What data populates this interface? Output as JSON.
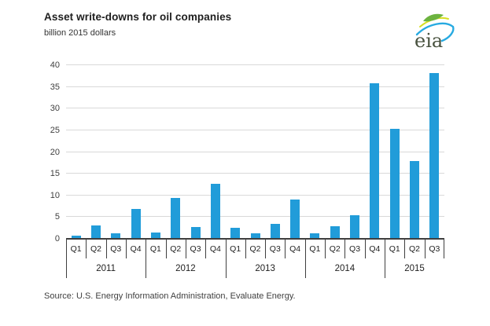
{
  "header": {
    "title": "Asset write-downs for oil companies",
    "subtitle": "billion 2015 dollars"
  },
  "logo": {
    "text": "eia"
  },
  "footer": {
    "source": "Source:  U.S. Energy Information Administration, Evaluate Energy."
  },
  "chart_data": {
    "type": "bar",
    "title": "Asset write-downs for oil companies",
    "ylabel": "billion 2015 dollars",
    "xlabel": "",
    "ylim": [
      0,
      40
    ],
    "ytick_step": 5,
    "grid": true,
    "legend": "none",
    "categories": [
      "Q1",
      "Q2",
      "Q3",
      "Q4",
      "Q1",
      "Q2",
      "Q3",
      "Q4",
      "Q1",
      "Q2",
      "Q3",
      "Q4",
      "Q1",
      "Q2",
      "Q3",
      "Q4",
      "Q1",
      "Q2",
      "Q3"
    ],
    "year_groups": [
      {
        "label": "2011",
        "quarters": 4
      },
      {
        "label": "2012",
        "quarters": 4
      },
      {
        "label": "2013",
        "quarters": 4
      },
      {
        "label": "2014",
        "quarters": 4
      },
      {
        "label": "2015",
        "quarters": 3
      }
    ],
    "values": [
      0.8,
      3.0,
      1.2,
      6.8,
      1.4,
      9.5,
      2.8,
      12.6,
      2.5,
      1.3,
      3.5,
      9.1,
      1.2,
      2.9,
      5.4,
      35.8,
      25.4,
      18.0,
      38.2
    ],
    "colors": {
      "bar": "#219cd9",
      "grid": "#d9d9d9",
      "axis": "#3f3f3f",
      "logo_text": "#49523f",
      "logo_leaf": "#6cb33f",
      "logo_yellow": "#d7df23",
      "logo_blue": "#27aae1"
    }
  }
}
